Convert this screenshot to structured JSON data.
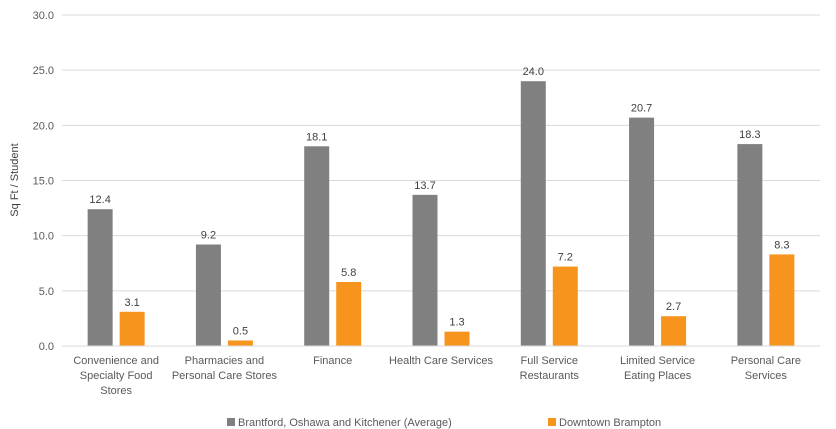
{
  "chart_data": {
    "type": "bar",
    "title": "",
    "xlabel": "",
    "ylabel": "Sq Ft / Student",
    "ylim": [
      0,
      30
    ],
    "yticks": [
      "0.0",
      "5.0",
      "10.0",
      "15.0",
      "20.0",
      "25.0",
      "30.0"
    ],
    "grid": true,
    "legend_position": "bottom",
    "categories": [
      [
        "Convenience and",
        "Specialty Food",
        "Stores"
      ],
      [
        "Pharmacies and",
        "Personal Care Stores"
      ],
      [
        "Finance"
      ],
      [
        "Health Care Services"
      ],
      [
        "Full Service",
        "Restaurants"
      ],
      [
        "Limited Service",
        "Eating Places"
      ],
      [
        "Personal Care",
        "Services"
      ]
    ],
    "series": [
      {
        "name": "Brantford, Oshawa and Kitchener (Average)",
        "color": "#808080",
        "values": [
          12.4,
          9.2,
          18.1,
          13.7,
          24.0,
          20.7,
          18.3
        ],
        "labels": [
          "12.4",
          "9.2",
          "18.1",
          "13.7",
          "24.0",
          "20.7",
          "18.3"
        ]
      },
      {
        "name": "Downtown Brampton",
        "color": "#f7941d",
        "values": [
          3.1,
          0.5,
          5.8,
          1.3,
          7.2,
          2.7,
          8.3
        ],
        "labels": [
          "3.1",
          "0.5",
          "5.8",
          "1.3",
          "7.2",
          "2.7",
          "8.3"
        ]
      }
    ]
  }
}
